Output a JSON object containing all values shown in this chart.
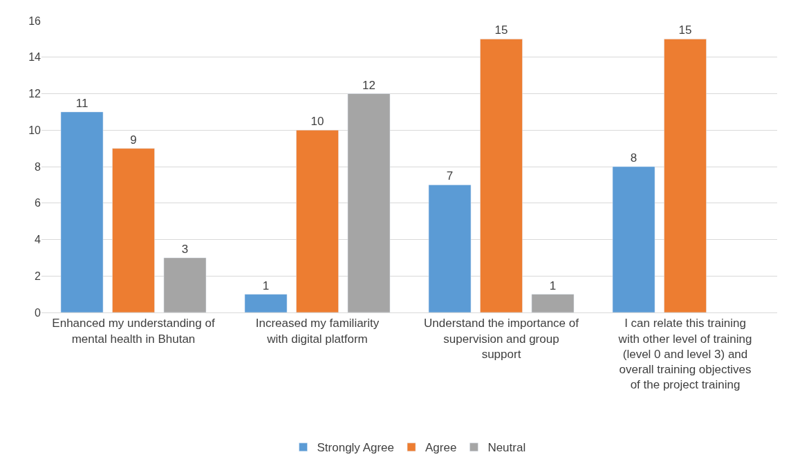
{
  "chart_data": {
    "type": "bar",
    "categories": [
      "Enhanced my understanding of mental health in Bhutan",
      "Increased my familiarity with digital platform",
      "Understand the importance of supervision and group support",
      "I can relate this training with other level of training (level 0 and level 3) and overall training objectives of the project training"
    ],
    "series": [
      {
        "name": "Strongly Agree",
        "color": "#5b9bd5",
        "values": [
          11,
          1,
          7,
          8
        ]
      },
      {
        "name": "Agree",
        "color": "#ed7d31",
        "values": [
          9,
          10,
          15,
          15
        ]
      },
      {
        "name": "Neutral",
        "color": "#a5a5a5",
        "values": [
          3,
          12,
          1,
          null
        ]
      }
    ],
    "ylim": [
      0,
      16
    ],
    "yticks": [
      0,
      2,
      4,
      6,
      8,
      10,
      12,
      14,
      16
    ],
    "grid": "y",
    "legend": "bottom",
    "data_labels": true
  }
}
